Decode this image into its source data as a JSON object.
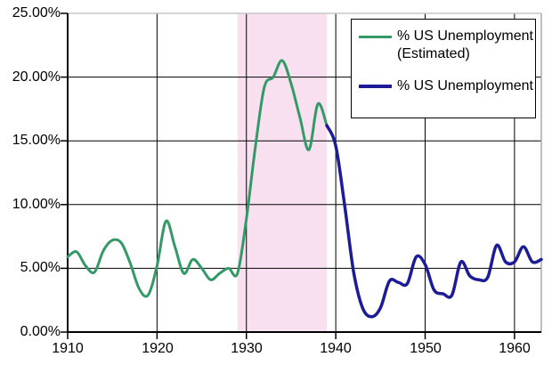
{
  "legend": {
    "items": [
      {
        "label_line1": "% US Unemployment",
        "label_line2": "(Estimated)",
        "color": "#339966"
      },
      {
        "label_line1": "% US Unemployment",
        "label_line2": "",
        "color": "#1c1c96"
      }
    ]
  },
  "axes": {
    "y": {
      "labels": [
        "25.00%",
        "20.00%",
        "15.00%",
        "10.00%",
        "5.00%",
        "0.00%"
      ],
      "values": [
        25,
        20,
        15,
        10,
        5,
        0
      ]
    },
    "x": {
      "labels": [
        "1910",
        "1920",
        "1930",
        "1940",
        "1950",
        "1960"
      ],
      "values": [
        1910,
        1920,
        1930,
        1940,
        1950,
        1960
      ]
    }
  },
  "colors": {
    "background": "#ffffff",
    "gridline": "#000000",
    "axis": "#000000",
    "plot_border_top": "#c6c6c6",
    "plot_border_right": "#aaaaaa",
    "band": "#f8e0f0",
    "series_estimated": "#339966",
    "series_official": "#1c1c96"
  },
  "chart_data": {
    "type": "line",
    "title": "",
    "xlabel": "",
    "ylabel": "",
    "x_range": [
      1910,
      1963
    ],
    "y_range": [
      0,
      25
    ],
    "y_tick_step": 5,
    "y_tick_format": "0.00%",
    "grid": true,
    "legend_position": "top-right",
    "highlight_band": {
      "x_start": 1929,
      "x_end": 1939,
      "color": "#f8e0f0"
    },
    "series": [
      {
        "name": "% US Unemployment (Estimated)",
        "color": "#339966",
        "x": [
          1910,
          1911,
          1912,
          1913,
          1914,
          1915,
          1916,
          1917,
          1918,
          1919,
          1920,
          1921,
          1922,
          1923,
          1924,
          1925,
          1926,
          1927,
          1928,
          1929,
          1930,
          1931,
          1932,
          1933,
          1934,
          1935,
          1936,
          1937,
          1938,
          1939
        ],
        "values": [
          5.9,
          6.3,
          5.2,
          4.7,
          6.4,
          7.2,
          7.0,
          5.4,
          3.4,
          2.9,
          5.2,
          8.7,
          6.7,
          4.6,
          5.7,
          5.0,
          4.1,
          4.6,
          5.0,
          4.6,
          8.9,
          14.5,
          19.2,
          20.0,
          21.3,
          19.5,
          16.8,
          14.3,
          17.9,
          16.2
        ]
      },
      {
        "name": "% US Unemployment",
        "color": "#1c1c96",
        "x": [
          1939,
          1940,
          1941,
          1942,
          1943,
          1944,
          1945,
          1946,
          1947,
          1948,
          1949,
          1950,
          1951,
          1952,
          1953,
          1954,
          1955,
          1956,
          1957,
          1958,
          1959,
          1960,
          1961,
          1962,
          1963
        ],
        "values": [
          16.2,
          14.6,
          9.9,
          4.7,
          1.9,
          1.2,
          1.9,
          4.0,
          3.9,
          3.8,
          5.9,
          5.3,
          3.3,
          3.0,
          2.9,
          5.5,
          4.4,
          4.1,
          4.3,
          6.8,
          5.5,
          5.5,
          6.7,
          5.5,
          5.7
        ]
      }
    ]
  }
}
